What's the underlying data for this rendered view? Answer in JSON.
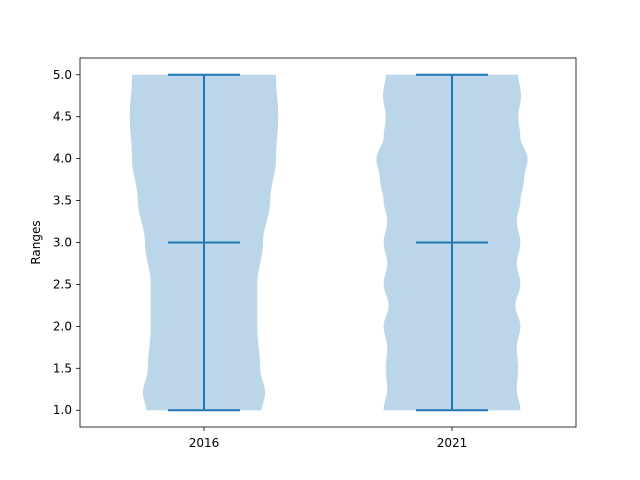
{
  "chart_data": {
    "type": "violin",
    "title": "",
    "xlabel": "",
    "ylabel": "Ranges",
    "categories": [
      "2016",
      "2021"
    ],
    "ylim": [
      0.8,
      5.2
    ],
    "yticks": [
      "1.0",
      "1.5",
      "2.0",
      "2.5",
      "3.0",
      "3.5",
      "4.0",
      "4.5",
      "5.0"
    ],
    "grid": false,
    "colors": {
      "body": "#1f77b4",
      "body_opacity": 0.3,
      "lines": "#1f77b4"
    },
    "series": [
      {
        "category": "2016",
        "min": 1.0,
        "median": 3.0,
        "max": 5.0,
        "density_profile": [
          [
            1.0,
            0.8
          ],
          [
            1.2,
            0.85
          ],
          [
            1.5,
            0.78
          ],
          [
            2.0,
            0.74
          ],
          [
            2.5,
            0.74
          ],
          [
            3.0,
            0.82
          ],
          [
            3.5,
            0.92
          ],
          [
            4.0,
            1.0
          ],
          [
            4.5,
            1.03
          ],
          [
            5.0,
            1.0
          ]
        ]
      },
      {
        "category": "2021",
        "min": 1.0,
        "median": 3.0,
        "max": 5.0,
        "density_profile": [
          [
            1.0,
            0.95
          ],
          [
            1.25,
            0.9
          ],
          [
            1.5,
            0.92
          ],
          [
            1.75,
            0.9
          ],
          [
            2.0,
            0.95
          ],
          [
            2.25,
            0.88
          ],
          [
            2.5,
            0.95
          ],
          [
            2.75,
            0.9
          ],
          [
            3.0,
            0.95
          ],
          [
            3.25,
            0.9
          ],
          [
            3.5,
            0.95
          ],
          [
            3.75,
            1.0
          ],
          [
            4.0,
            1.05
          ],
          [
            4.25,
            0.95
          ],
          [
            4.5,
            0.92
          ],
          [
            4.75,
            0.96
          ],
          [
            5.0,
            0.92
          ]
        ]
      }
    ]
  }
}
